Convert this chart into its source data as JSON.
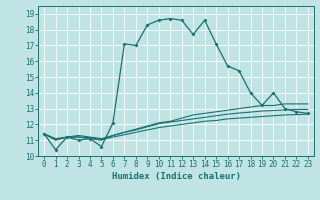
{
  "xlabel": "Humidex (Indice chaleur)",
  "bg_color": "#c0e4e4",
  "line_color": "#1a7070",
  "grid_color": "#ffffff",
  "xlim": [
    -0.5,
    23.5
  ],
  "ylim": [
    10,
    19.5
  ],
  "yticks": [
    10,
    11,
    12,
    13,
    14,
    15,
    16,
    17,
    18,
    19
  ],
  "xticks": [
    0,
    1,
    2,
    3,
    4,
    5,
    6,
    7,
    8,
    9,
    10,
    11,
    12,
    13,
    14,
    15,
    16,
    17,
    18,
    19,
    20,
    21,
    22,
    23
  ],
  "series": [
    [
      11.4,
      10.4,
      11.2,
      11.0,
      11.1,
      10.6,
      12.1,
      17.1,
      17.0,
      18.3,
      18.6,
      18.7,
      18.6,
      17.7,
      18.6,
      17.1,
      15.7,
      15.4,
      14.0,
      13.2,
      14.0,
      13.0,
      12.8,
      12.7
    ],
    [
      11.4,
      11.0,
      11.2,
      11.2,
      11.1,
      11.0,
      11.3,
      11.5,
      11.7,
      11.9,
      12.1,
      12.2,
      12.4,
      12.6,
      12.7,
      12.8,
      12.9,
      13.0,
      13.1,
      13.2,
      13.2,
      13.3,
      13.3,
      13.3
    ],
    [
      11.4,
      11.05,
      11.2,
      11.2,
      11.15,
      11.05,
      11.2,
      11.35,
      11.5,
      11.65,
      11.8,
      11.9,
      12.0,
      12.1,
      12.2,
      12.25,
      12.35,
      12.4,
      12.45,
      12.5,
      12.55,
      12.6,
      12.62,
      12.65
    ],
    [
      11.4,
      11.1,
      11.2,
      11.3,
      11.2,
      11.1,
      11.3,
      11.5,
      11.65,
      11.85,
      12.05,
      12.15,
      12.25,
      12.35,
      12.45,
      12.55,
      12.65,
      12.72,
      12.78,
      12.85,
      12.88,
      12.92,
      12.95,
      12.95
    ]
  ]
}
